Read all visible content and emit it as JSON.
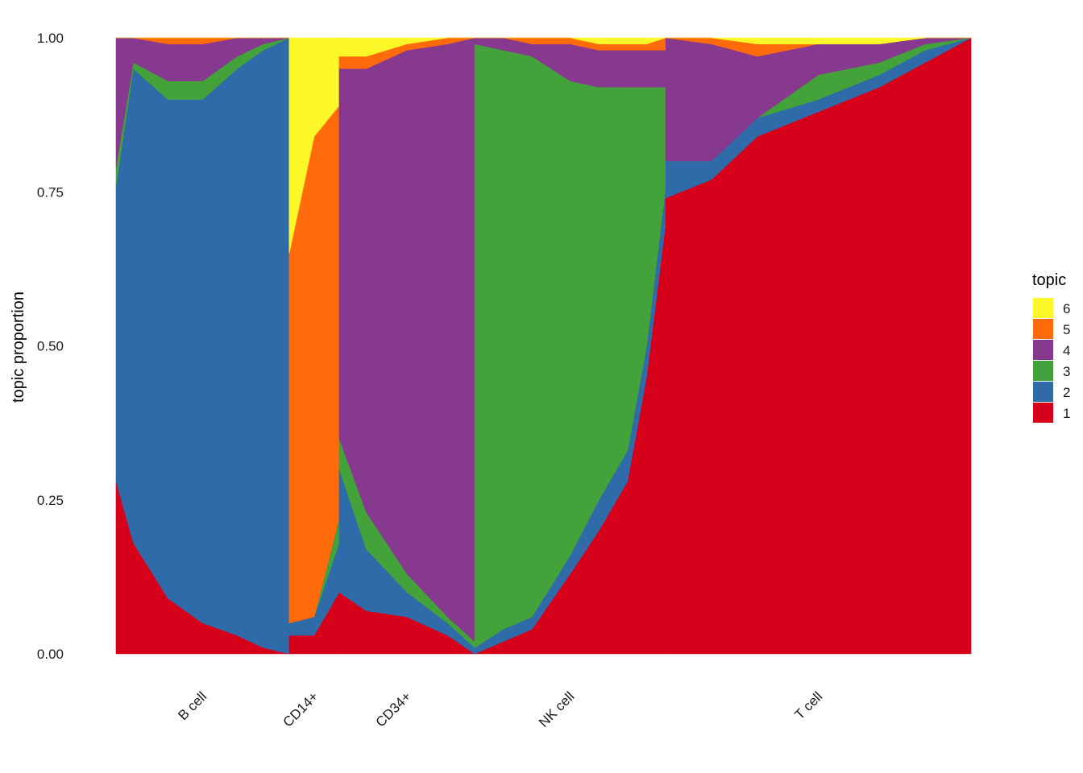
{
  "chart_data": {
    "type": "area",
    "subtype": "stacked structure plot (topic proportions per cell, sorted within group)",
    "title": "",
    "xlabel": "",
    "ylabel": "topic proportion",
    "ylim": [
      0,
      1
    ],
    "y_ticks": [
      "0.00",
      "0.25",
      "0.50",
      "0.75",
      "1.00"
    ],
    "grid": false,
    "legend": {
      "title": "topic",
      "placement": "right",
      "order": [
        "6",
        "5",
        "4",
        "3",
        "2",
        "1"
      ]
    },
    "stack_order_bottom_to_top": [
      "1",
      "2",
      "3",
      "4",
      "5",
      "6"
    ],
    "colors": {
      "1": "#d7001b",
      "2": "#2f6ba8",
      "3": "#43a23a",
      "4": "#87388f",
      "5": "#ff6b0a",
      "6": "#fcf728"
    },
    "groups": [
      {
        "name": "B cell",
        "cell_share": 0.2025,
        "cumulative_profile": [
          {
            "f": 0.0,
            "t1": 0.28,
            "t2": 0.76,
            "t3": 0.79,
            "t4": 1.0,
            "t5": 1.0
          },
          {
            "f": 0.1,
            "t1": 0.18,
            "t2": 0.95,
            "t3": 0.96,
            "t4": 1.0,
            "t5": 1.0
          },
          {
            "f": 0.3,
            "t1": 0.09,
            "t2": 0.9,
            "t3": 0.93,
            "t4": 0.99,
            "t5": 1.0
          },
          {
            "f": 0.5,
            "t1": 0.05,
            "t2": 0.9,
            "t3": 0.93,
            "t4": 0.99,
            "t5": 1.0
          },
          {
            "f": 0.7,
            "t1": 0.03,
            "t2": 0.95,
            "t3": 0.97,
            "t4": 1.0,
            "t5": 1.0
          },
          {
            "f": 0.85,
            "t1": 0.01,
            "t2": 0.98,
            "t3": 0.99,
            "t4": 1.0,
            "t5": 1.0
          },
          {
            "f": 1.0,
            "t1": 0.0,
            "t2": 1.0,
            "t3": 1.0,
            "t4": 1.0,
            "t5": 1.0
          }
        ]
      },
      {
        "name": "CD14+",
        "cell_share": 0.0585,
        "cumulative_profile": [
          {
            "f": 0.0,
            "t1": 0.03,
            "t2": 0.05,
            "t3": 0.05,
            "t4": 0.05,
            "t5": 0.65
          },
          {
            "f": 0.5,
            "t1": 0.03,
            "t2": 0.06,
            "t3": 0.06,
            "t4": 0.06,
            "t5": 0.84
          },
          {
            "f": 1.0,
            "t1": 0.1,
            "t2": 0.18,
            "t3": 0.22,
            "t4": 0.22,
            "t5": 0.89
          }
        ]
      },
      {
        "name": "CD34+",
        "cell_share": 0.1585,
        "cumulative_profile": [
          {
            "f": 0.0,
            "t1": 0.1,
            "t2": 0.3,
            "t3": 0.35,
            "t4": 0.95,
            "t5": 0.97
          },
          {
            "f": 0.2,
            "t1": 0.07,
            "t2": 0.17,
            "t3": 0.23,
            "t4": 0.95,
            "t5": 0.97
          },
          {
            "f": 0.5,
            "t1": 0.06,
            "t2": 0.1,
            "t3": 0.13,
            "t4": 0.98,
            "t5": 0.99
          },
          {
            "f": 0.8,
            "t1": 0.03,
            "t2": 0.05,
            "t3": 0.06,
            "t4": 0.99,
            "t5": 1.0
          },
          {
            "f": 1.0,
            "t1": 0.0,
            "t2": 0.01,
            "t3": 0.02,
            "t4": 1.0,
            "t5": 1.0
          }
        ]
      },
      {
        "name": "NK cell",
        "cell_share": 0.2235,
        "cumulative_profile": [
          {
            "f": 0.0,
            "t1": 0.0,
            "t2": 0.01,
            "t3": 0.99,
            "t4": 1.0,
            "t5": 1.0
          },
          {
            "f": 0.15,
            "t1": 0.02,
            "t2": 0.04,
            "t3": 0.98,
            "t4": 1.0,
            "t5": 1.0
          },
          {
            "f": 0.3,
            "t1": 0.04,
            "t2": 0.06,
            "t3": 0.97,
            "t4": 0.99,
            "t5": 1.0
          },
          {
            "f": 0.5,
            "t1": 0.13,
            "t2": 0.16,
            "t3": 0.93,
            "t4": 0.99,
            "t5": 1.0
          },
          {
            "f": 0.65,
            "t1": 0.2,
            "t2": 0.25,
            "t3": 0.92,
            "t4": 0.98,
            "t5": 0.99
          },
          {
            "f": 0.8,
            "t1": 0.28,
            "t2": 0.33,
            "t3": 0.92,
            "t4": 0.98,
            "t5": 0.99
          },
          {
            "f": 0.9,
            "t1": 0.45,
            "t2": 0.5,
            "t3": 0.92,
            "t4": 0.98,
            "t5": 0.99
          },
          {
            "f": 1.0,
            "t1": 0.7,
            "t2": 0.76,
            "t3": 0.92,
            "t4": 0.98,
            "t5": 1.0
          }
        ]
      },
      {
        "name": "T cell",
        "cell_share": 0.357,
        "cumulative_profile": [
          {
            "f": 0.0,
            "t1": 0.74,
            "t2": 0.8,
            "t3": 0.8,
            "t4": 1.0,
            "t5": 1.0
          },
          {
            "f": 0.15,
            "t1": 0.77,
            "t2": 0.8,
            "t3": 0.8,
            "t4": 0.99,
            "t5": 1.0
          },
          {
            "f": 0.3,
            "t1": 0.84,
            "t2": 0.87,
            "t3": 0.87,
            "t4": 0.97,
            "t5": 0.99
          },
          {
            "f": 0.5,
            "t1": 0.88,
            "t2": 0.9,
            "t3": 0.94,
            "t4": 0.99,
            "t5": 0.99
          },
          {
            "f": 0.7,
            "t1": 0.92,
            "t2": 0.94,
            "t3": 0.96,
            "t4": 0.99,
            "t5": 0.99
          },
          {
            "f": 0.85,
            "t1": 0.96,
            "t2": 0.98,
            "t3": 0.99,
            "t4": 1.0,
            "t5": 1.0
          },
          {
            "f": 1.0,
            "t1": 1.0,
            "t2": 1.0,
            "t3": 1.0,
            "t4": 1.0,
            "t5": 1.0
          }
        ]
      }
    ]
  }
}
